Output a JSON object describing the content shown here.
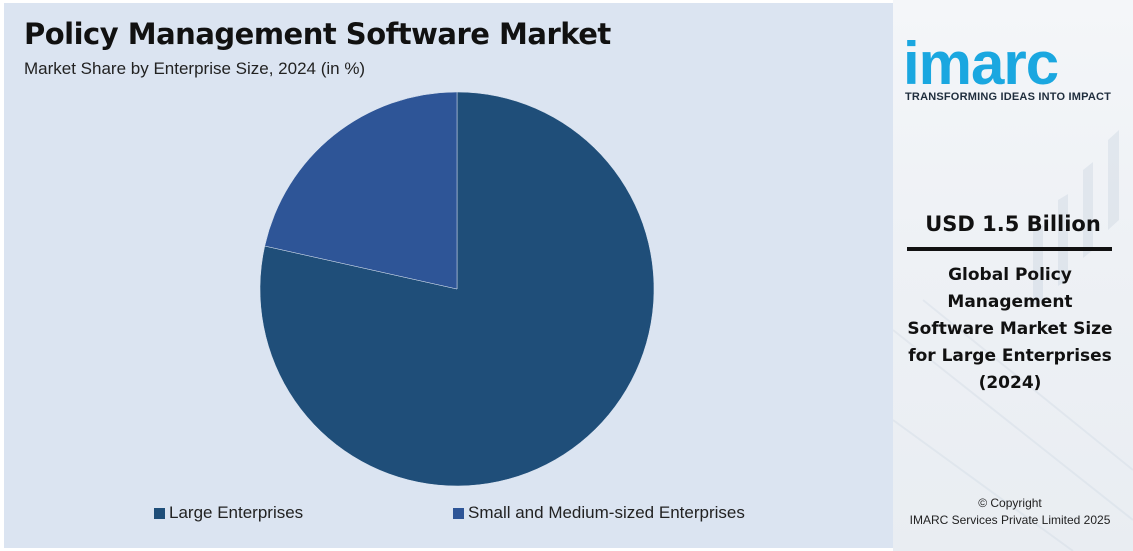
{
  "chart_data": {
    "type": "pie",
    "title": "Policy Management Software Market",
    "subtitle": "Market Share by Enterprise Size, 2024 (in %)",
    "categories": [
      "Large Enterprises",
      "Small and Medium-sized Enterprises"
    ],
    "values": [
      78.5,
      21.5
    ],
    "colors": [
      "#1f4e79",
      "#2e5597"
    ],
    "legend_position": "bottom"
  },
  "brand": {
    "logo_text": "imarc",
    "logo_color": "#1aa7e0",
    "tagline": "TRANSFORMING IDEAS INTO IMPACT"
  },
  "highlight": {
    "value": "USD 1.5 Billion",
    "description_lines": [
      "Global Policy",
      "Management",
      "Software Market Size",
      "for Large Enterprises",
      "(2024)"
    ]
  },
  "footer": {
    "copyright_line1": "© Copyright",
    "copyright_line2": "IMARC Services Private Limited 2025"
  }
}
